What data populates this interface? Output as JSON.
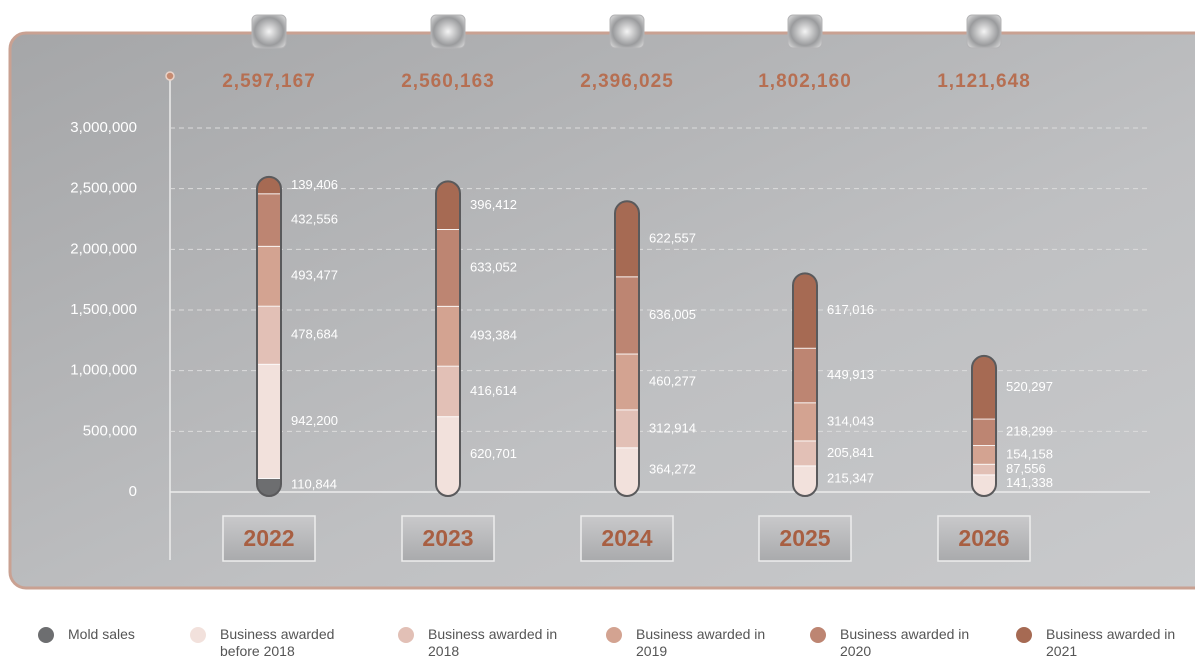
{
  "chart_data": {
    "type": "stacked_bar",
    "categories": [
      "2022",
      "2023",
      "2024",
      "2025",
      "2026"
    ],
    "series": [
      {
        "name": "Mold sales",
        "color": "#6d6e70",
        "values": [
          110844,
          null,
          null,
          null,
          null
        ],
        "value_labels": [
          "110,844",
          null,
          null,
          null,
          null
        ]
      },
      {
        "name": "Business awarded before 2018",
        "color": "#f2e1dc",
        "values": [
          942200,
          620701,
          364272,
          215347,
          141338
        ],
        "value_labels": [
          "942,200",
          "620,701",
          "364,272",
          "215,347",
          "141,338"
        ]
      },
      {
        "name": "Business awarded in 2018",
        "color": "#e2c0b6",
        "values": [
          478684,
          416614,
          312914,
          205841,
          87556
        ],
        "value_labels": [
          "478,684",
          "416,614",
          "312,914",
          "205,841",
          "87,556"
        ]
      },
      {
        "name": "Business awarded in 2019",
        "color": "#d3a391",
        "values": [
          493477,
          493384,
          460277,
          314043,
          154158
        ],
        "value_labels": [
          "493,477",
          "493,384",
          "460,277",
          "314,043",
          "154,158"
        ]
      },
      {
        "name": "Business awarded in 2020",
        "color": "#bd8572",
        "values": [
          432556,
          633052,
          636005,
          449913,
          218299
        ],
        "value_labels": [
          "432,556",
          "633,052",
          "636,005",
          "449,913",
          "218,299"
        ]
      },
      {
        "name": "Business awarded in 2021",
        "color": "#a66a53",
        "values": [
          139406,
          396412,
          622557,
          617016,
          520297
        ],
        "value_labels": [
          "139,406",
          "396,412",
          "622,557",
          "617,016",
          "520,297"
        ]
      }
    ],
    "totals": [
      2597167,
      2560163,
      2396025,
      1802160,
      1121648
    ],
    "total_labels": [
      "2,597,167",
      "2,560,163",
      "2,396,025",
      "1,802,160",
      "1,121,648"
    ],
    "ylim": [
      0,
      3000000
    ],
    "yticks": [
      0,
      {
        "value": 500000,
        "label": "500,000"
      },
      {
        "value": 1000000,
        "label": "1,000,000"
      },
      {
        "value": 1500000,
        "label": "1,500,000"
      },
      {
        "value": 2000000,
        "label": "2,000,000"
      },
      {
        "value": 2500000,
        "label": "2,500,000"
      },
      {
        "value": 3000000,
        "label": "3,000,000"
      }
    ],
    "grid": true
  }
}
